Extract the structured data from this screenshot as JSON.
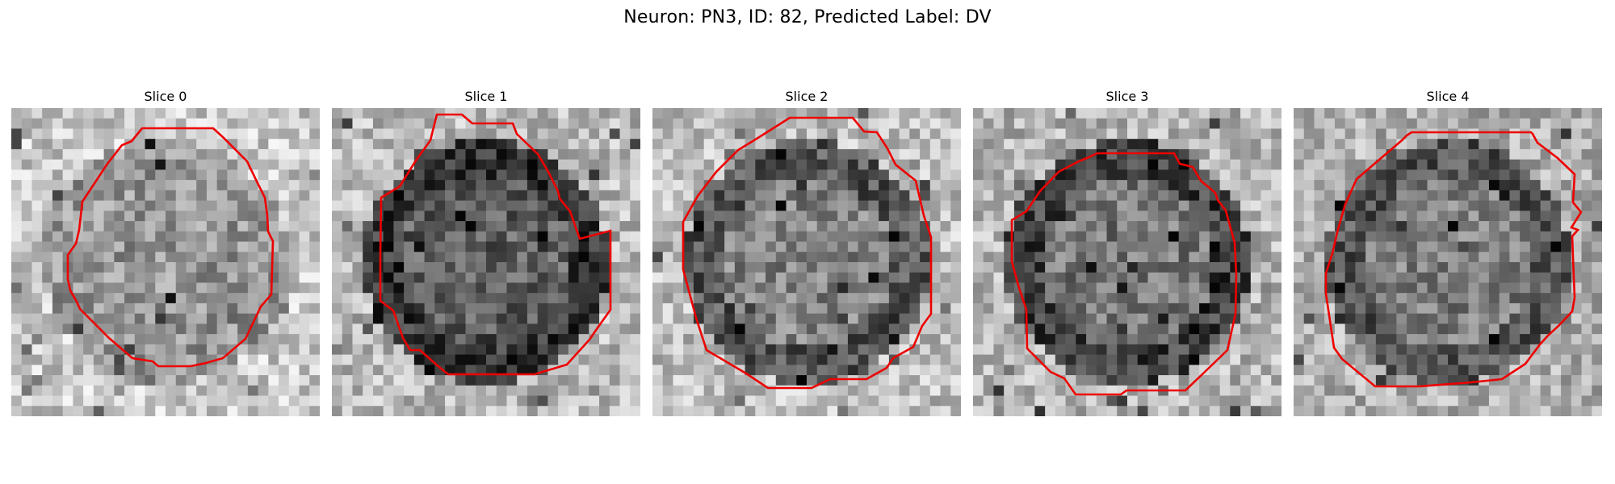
{
  "figure": {
    "title": "Neuron: PN3, ID: 82, Predicted Label: DV"
  },
  "panels": [
    {
      "title": "Slice 0",
      "seed": 11,
      "center_tone": 150,
      "ring_tone": 150,
      "outer_tone": 200
    },
    {
      "title": "Slice 1",
      "seed": 23,
      "center_tone": 95,
      "ring_tone": 55,
      "outer_tone": 185
    },
    {
      "title": "Slice 2",
      "seed": 37,
      "center_tone": 130,
      "ring_tone": 85,
      "outer_tone": 190
    },
    {
      "title": "Slice 3",
      "seed": 41,
      "center_tone": 120,
      "ring_tone": 65,
      "outer_tone": 180
    },
    {
      "title": "Slice 4",
      "seed": 53,
      "center_tone": 125,
      "ring_tone": 85,
      "outer_tone": 175
    }
  ],
  "colors": {
    "contour": "#ee0000"
  }
}
